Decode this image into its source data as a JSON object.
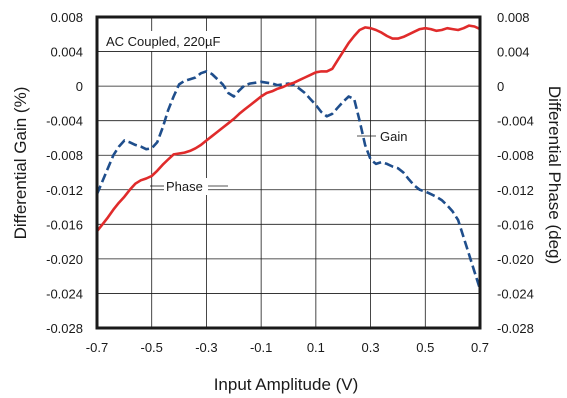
{
  "chart_data": {
    "type": "line",
    "xlabel": "Input Amplitude (V)",
    "ylabel_left": "Differential Gain (%)",
    "ylabel_right": "Differential Phase (deg)",
    "xlim": [
      -0.7,
      0.7
    ],
    "ylim_left": [
      -0.028,
      0.008
    ],
    "ylim_right": [
      -0.028,
      0.008
    ],
    "x_ticks": [
      "-0.7",
      "-0.5",
      "-0.3",
      "-0.1",
      "0.1",
      "0.3",
      "0.5",
      "0.7"
    ],
    "y_ticks_left": [
      "0.008",
      "0.004",
      "0",
      "-0.004",
      "-0.008",
      "-0.012",
      "-0.016",
      "-0.020",
      "-0.024",
      "-0.028"
    ],
    "y_ticks_right": [
      "0.008",
      "0.004",
      "0",
      "-0.004",
      "-0.008",
      "-0.012",
      "-0.016",
      "-0.020",
      "-0.024",
      "-0.028"
    ],
    "grid": true,
    "annotation": "AC Coupled, 220µF",
    "series": [
      {
        "name": "Gain",
        "color": "#1f4e8c",
        "style": "dashed",
        "x": [
          -0.7,
          -0.68,
          -0.66,
          -0.64,
          -0.62,
          -0.6,
          -0.58,
          -0.56,
          -0.54,
          -0.52,
          -0.5,
          -0.48,
          -0.46,
          -0.44,
          -0.42,
          -0.4,
          -0.38,
          -0.36,
          -0.34,
          -0.32,
          -0.3,
          -0.28,
          -0.26,
          -0.24,
          -0.22,
          -0.2,
          -0.18,
          -0.16,
          -0.14,
          -0.12,
          -0.1,
          -0.08,
          -0.06,
          -0.04,
          -0.02,
          0.0,
          0.02,
          0.04,
          0.06,
          0.08,
          0.1,
          0.12,
          0.14,
          0.16,
          0.18,
          0.2,
          0.22,
          0.24,
          0.26,
          0.28,
          0.3,
          0.32,
          0.34,
          0.36,
          0.38,
          0.4,
          0.42,
          0.44,
          0.46,
          0.48,
          0.5,
          0.52,
          0.54,
          0.56,
          0.58,
          0.6,
          0.62,
          0.64,
          0.66,
          0.68,
          0.7
        ],
        "values": [
          -0.0125,
          -0.011,
          -0.0095,
          -0.008,
          -0.007,
          -0.0063,
          -0.0065,
          -0.0068,
          -0.007,
          -0.0073,
          -0.0072,
          -0.0065,
          -0.0048,
          -0.0028,
          -0.0012,
          0.0002,
          0.0006,
          0.0008,
          0.001,
          0.0015,
          0.0017,
          0.0014,
          0.0008,
          0.0002,
          -0.0008,
          -0.0012,
          -0.0005,
          0.0001,
          0.0003,
          0.0004,
          0.0005,
          0.0004,
          0.0003,
          0.0001,
          0.0002,
          0.0003,
          0.0001,
          -0.0003,
          -0.0008,
          -0.0015,
          -0.0022,
          -0.003,
          -0.0035,
          -0.0032,
          -0.0025,
          -0.0018,
          -0.0012,
          -0.0015,
          -0.004,
          -0.0068,
          -0.0085,
          -0.009,
          -0.0088,
          -0.009,
          -0.0093,
          -0.0095,
          -0.01,
          -0.0108,
          -0.0115,
          -0.012,
          -0.0122,
          -0.0125,
          -0.0128,
          -0.0132,
          -0.0138,
          -0.0145,
          -0.0155,
          -0.0175,
          -0.0195,
          -0.0215,
          -0.0235
        ]
      },
      {
        "name": "Phase",
        "color": "#e02b2b",
        "style": "solid",
        "x": [
          -0.7,
          -0.68,
          -0.66,
          -0.64,
          -0.62,
          -0.6,
          -0.58,
          -0.56,
          -0.54,
          -0.52,
          -0.5,
          -0.48,
          -0.46,
          -0.44,
          -0.42,
          -0.4,
          -0.38,
          -0.36,
          -0.34,
          -0.32,
          -0.3,
          -0.28,
          -0.26,
          -0.24,
          -0.22,
          -0.2,
          -0.18,
          -0.16,
          -0.14,
          -0.12,
          -0.1,
          -0.08,
          -0.06,
          -0.04,
          -0.02,
          0.0,
          0.02,
          0.04,
          0.06,
          0.08,
          0.1,
          0.12,
          0.14,
          0.16,
          0.18,
          0.2,
          0.22,
          0.24,
          0.26,
          0.28,
          0.3,
          0.32,
          0.34,
          0.36,
          0.38,
          0.4,
          0.42,
          0.44,
          0.46,
          0.48,
          0.5,
          0.52,
          0.54,
          0.56,
          0.58,
          0.6,
          0.62,
          0.64,
          0.66,
          0.68,
          0.7
        ],
        "values": [
          -0.0168,
          -0.016,
          -0.0152,
          -0.0143,
          -0.0135,
          -0.0128,
          -0.012,
          -0.0113,
          -0.0109,
          -0.0107,
          -0.0104,
          -0.0098,
          -0.0091,
          -0.0085,
          -0.0079,
          -0.0078,
          -0.0077,
          -0.0075,
          -0.0072,
          -0.0068,
          -0.0063,
          -0.0058,
          -0.0053,
          -0.0048,
          -0.0043,
          -0.0038,
          -0.0032,
          -0.0027,
          -0.0022,
          -0.0017,
          -0.0012,
          -0.0008,
          -0.0006,
          -0.0003,
          -0.0001,
          0.0002,
          0.0004,
          0.0007,
          0.001,
          0.0013,
          0.0016,
          0.0017,
          0.0017,
          0.002,
          0.003,
          0.004,
          0.005,
          0.0058,
          0.0065,
          0.0068,
          0.0067,
          0.0065,
          0.0062,
          0.0058,
          0.0055,
          0.0055,
          0.0057,
          0.006,
          0.0063,
          0.0066,
          0.0067,
          0.0066,
          0.0064,
          0.0065,
          0.0067,
          0.0066,
          0.0065,
          0.0067,
          0.007,
          0.0069,
          0.0066
        ]
      }
    ],
    "labels": {
      "gain": "Gain",
      "phase": "Phase"
    }
  }
}
